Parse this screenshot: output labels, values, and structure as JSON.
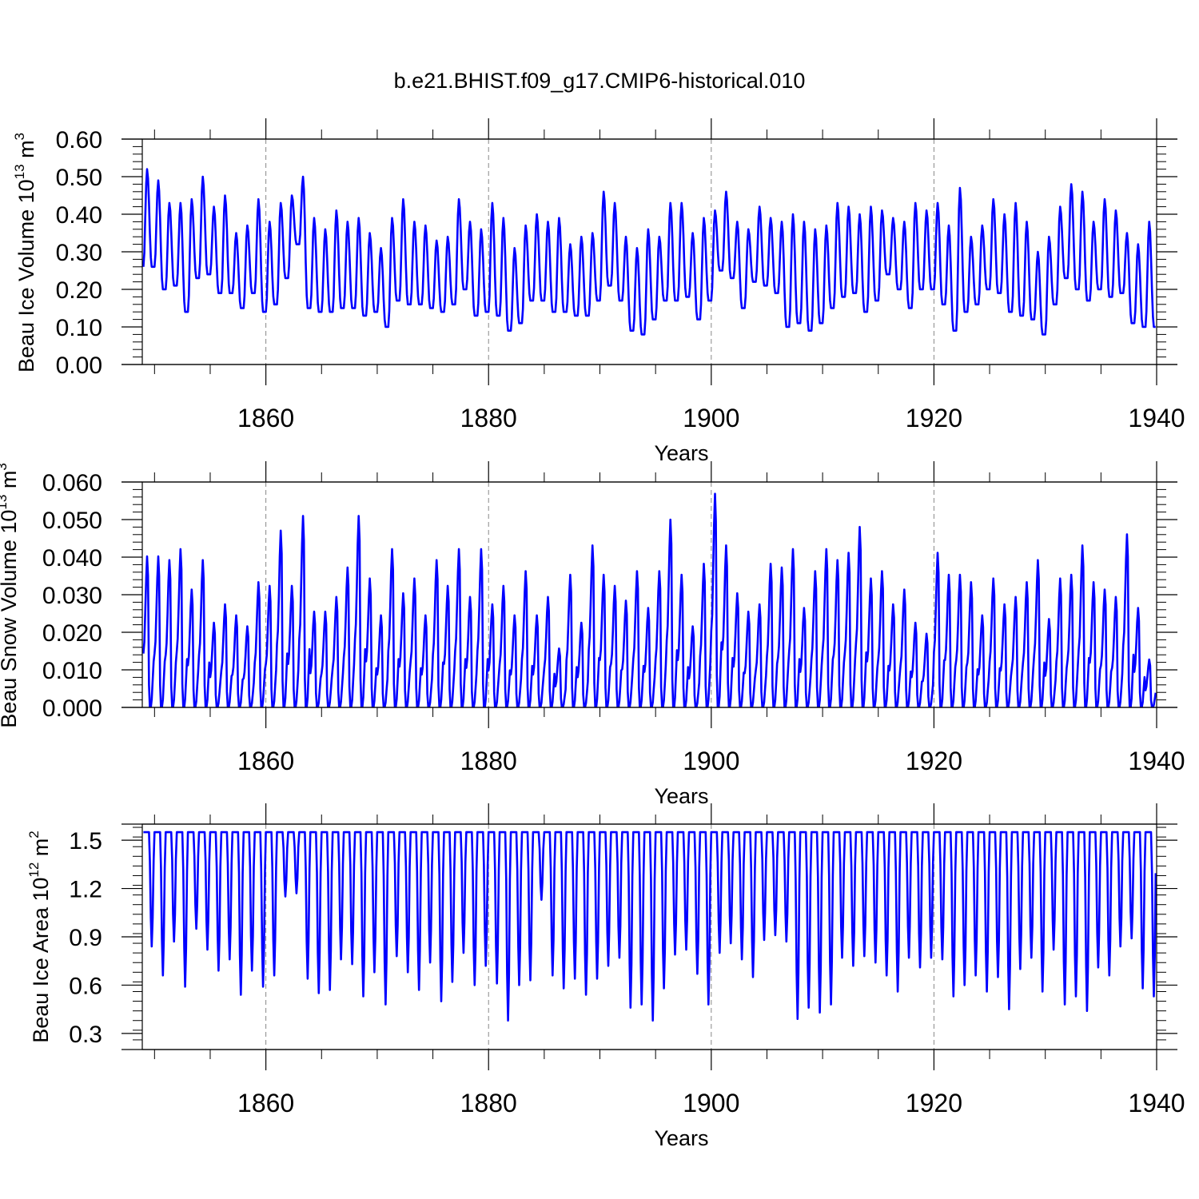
{
  "figure_title": "b.e21.BHIST.f09_g17.CMIP6-historical.010",
  "chart_data": [
    {
      "type": "line",
      "id": "ice-volume",
      "title": "b.e21.BHIST.f09_g17.CMIP6-historical.010",
      "xlabel": "Years",
      "ylabel": {
        "base": "Beau Ice Volume 10",
        "exponent": "13",
        "unit": " m",
        "unit_exponent": "3"
      },
      "xlim": [
        1848.9,
        1940
      ],
      "ylim": [
        0,
        0.6
      ],
      "xticks": [
        1860,
        1880,
        1900,
        1920,
        1940
      ],
      "xtick_labels": [
        "1860",
        "1880",
        "1900",
        "1920",
        "1940"
      ],
      "yticks": [
        0,
        0.1,
        0.2,
        0.3,
        0.4,
        0.5,
        0.6
      ],
      "ytick_labels": [
        "0.00",
        "0.10",
        "0.20",
        "0.30",
        "0.40",
        "0.50",
        "0.60"
      ],
      "grid": "vertical dashed at major x ticks",
      "line_color": "#0000ff",
      "series_description": "monthly values, one annual cycle per year",
      "annual_max": [
        0.52,
        0.49,
        0.43,
        0.43,
        0.44,
        0.5,
        0.42,
        0.45,
        0.35,
        0.37,
        0.44,
        0.38,
        0.43,
        0.45,
        0.5,
        0.39,
        0.36,
        0.41,
        0.38,
        0.39,
        0.35,
        0.31,
        0.39,
        0.44,
        0.38,
        0.37,
        0.33,
        0.34,
        0.44,
        0.38,
        0.36,
        0.43,
        0.39,
        0.31,
        0.37,
        0.4,
        0.38,
        0.39,
        0.32,
        0.34,
        0.35,
        0.46,
        0.43,
        0.34,
        0.31,
        0.36,
        0.34,
        0.43,
        0.43,
        0.35,
        0.39,
        0.41,
        0.46,
        0.38,
        0.36,
        0.42,
        0.39,
        0.38,
        0.4,
        0.38,
        0.36,
        0.37,
        0.43,
        0.42,
        0.4,
        0.42,
        0.41,
        0.39,
        0.38,
        0.43,
        0.41,
        0.43,
        0.37,
        0.47,
        0.34,
        0.37,
        0.44,
        0.4,
        0.43,
        0.38,
        0.3,
        0.34,
        0.42,
        0.48,
        0.46,
        0.38,
        0.44,
        0.41,
        0.35,
        0.32,
        0.38
      ],
      "annual_min": [
        0.26,
        0.2,
        0.21,
        0.14,
        0.23,
        0.24,
        0.19,
        0.19,
        0.15,
        0.19,
        0.14,
        0.16,
        0.23,
        0.32,
        0.15,
        0.14,
        0.14,
        0.15,
        0.15,
        0.13,
        0.14,
        0.1,
        0.17,
        0.16,
        0.16,
        0.15,
        0.14,
        0.16,
        0.2,
        0.13,
        0.14,
        0.13,
        0.09,
        0.11,
        0.17,
        0.17,
        0.14,
        0.14,
        0.13,
        0.13,
        0.17,
        0.21,
        0.17,
        0.09,
        0.08,
        0.12,
        0.17,
        0.17,
        0.18,
        0.12,
        0.17,
        0.25,
        0.23,
        0.15,
        0.22,
        0.21,
        0.19,
        0.1,
        0.11,
        0.09,
        0.11,
        0.15,
        0.18,
        0.19,
        0.14,
        0.17,
        0.24,
        0.2,
        0.15,
        0.2,
        0.2,
        0.16,
        0.09,
        0.14,
        0.16,
        0.2,
        0.19,
        0.14,
        0.13,
        0.12,
        0.08,
        0.16,
        0.23,
        0.2,
        0.17,
        0.2,
        0.18,
        0.19,
        0.11,
        0.1,
        0.1
      ]
    },
    {
      "type": "line",
      "id": "snow-volume",
      "xlabel": "Years",
      "ylabel": {
        "base": "Beau Snow Volume 10",
        "exponent": "13",
        "unit": " m",
        "unit_exponent": "3"
      },
      "xlim": [
        1848.9,
        1940
      ],
      "ylim": [
        0,
        0.06
      ],
      "xticks": [
        1860,
        1880,
        1900,
        1920,
        1940
      ],
      "xtick_labels": [
        "1860",
        "1880",
        "1900",
        "1920",
        "1940"
      ],
      "yticks": [
        0,
        0.01,
        0.02,
        0.03,
        0.04,
        0.05,
        0.06
      ],
      "ytick_labels": [
        "0.000",
        "0.010",
        "0.020",
        "0.030",
        "0.040",
        "0.050",
        "0.060"
      ],
      "grid": "vertical dashed at major x ticks",
      "line_color": "#0000ff",
      "series_description": "monthly values, one annual cycle per year, near zero in late summer",
      "annual_max": [
        0.041,
        0.041,
        0.04,
        0.043,
        0.032,
        0.04,
        0.023,
        0.028,
        0.025,
        0.022,
        0.034,
        0.033,
        0.048,
        0.033,
        0.052,
        0.026,
        0.026,
        0.03,
        0.038,
        0.052,
        0.035,
        0.025,
        0.043,
        0.031,
        0.035,
        0.025,
        0.04,
        0.033,
        0.043,
        0.03,
        0.043,
        0.028,
        0.033,
        0.025,
        0.037,
        0.025,
        0.03,
        0.016,
        0.036,
        0.023,
        0.044,
        0.036,
        0.033,
        0.029,
        0.037,
        0.027,
        0.037,
        0.051,
        0.036,
        0.022,
        0.039,
        0.058,
        0.044,
        0.031,
        0.026,
        0.028,
        0.039,
        0.038,
        0.043,
        0.027,
        0.037,
        0.043,
        0.04,
        0.042,
        0.049,
        0.035,
        0.037,
        0.028,
        0.032,
        0.023,
        0.02,
        0.042,
        0.036,
        0.036,
        0.034,
        0.025,
        0.035,
        0.028,
        0.03,
        0.034,
        0.04,
        0.024,
        0.035,
        0.036,
        0.044,
        0.034,
        0.032,
        0.03,
        0.047,
        0.027,
        0.013
      ]
    },
    {
      "type": "line",
      "id": "ice-area",
      "xlabel": "Years",
      "ylabel": {
        "base": "Beau Ice Area 10",
        "exponent": "12",
        "unit": " m",
        "unit_exponent": "2"
      },
      "xlim": [
        1848.9,
        1940
      ],
      "ylim": [
        0.2,
        1.6
      ],
      "xticks": [
        1860,
        1880,
        1900,
        1920,
        1940
      ],
      "xtick_labels": [
        "1860",
        "1880",
        "1900",
        "1920",
        "1940"
      ],
      "yticks": [
        0.3,
        0.6,
        0.9,
        1.2,
        1.5
      ],
      "ytick_labels": [
        "0.3",
        "0.6",
        "0.9",
        "1.2",
        "1.5"
      ],
      "grid": "vertical dashed at major x ticks",
      "line_color": "#0000ff",
      "series_description": "monthly values, plateau near 1.55 in winter, annual summer minimum",
      "annual_max": 1.55,
      "annual_min": [
        0.84,
        0.66,
        0.87,
        0.59,
        0.95,
        0.82,
        0.69,
        0.76,
        0.54,
        0.69,
        0.59,
        0.66,
        1.15,
        1.17,
        0.64,
        0.55,
        0.57,
        0.76,
        0.73,
        0.53,
        0.68,
        0.48,
        0.78,
        0.68,
        0.57,
        0.74,
        0.5,
        0.62,
        0.8,
        0.6,
        0.72,
        0.61,
        0.38,
        0.6,
        0.63,
        1.13,
        0.66,
        0.58,
        0.64,
        0.54,
        0.64,
        0.72,
        0.77,
        0.46,
        0.48,
        0.38,
        0.58,
        0.79,
        0.82,
        0.67,
        0.48,
        0.8,
        0.86,
        0.76,
        0.65,
        0.88,
        0.91,
        0.87,
        0.39,
        0.46,
        0.43,
        0.48,
        0.77,
        0.72,
        0.78,
        0.74,
        0.66,
        0.56,
        0.77,
        0.71,
        0.77,
        0.76,
        0.53,
        0.6,
        0.66,
        0.56,
        0.65,
        0.45,
        0.7,
        0.77,
        0.56,
        0.82,
        0.48,
        0.53,
        0.44,
        0.71,
        0.66,
        0.84,
        0.89,
        0.58,
        0.53
      ]
    }
  ]
}
